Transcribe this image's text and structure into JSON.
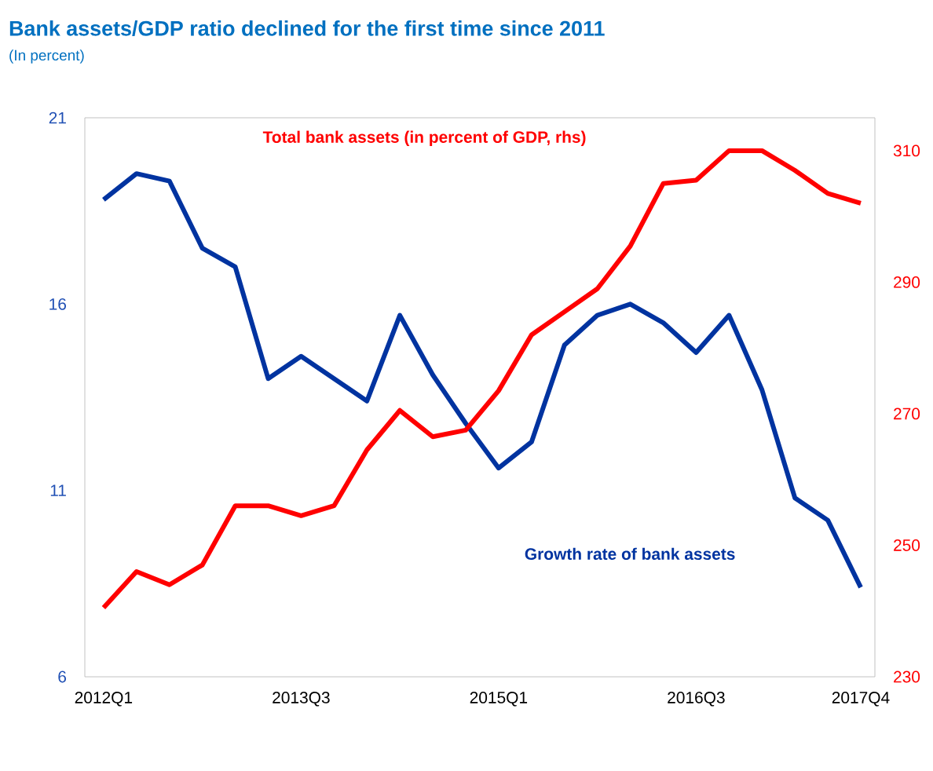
{
  "chart_data": {
    "type": "line",
    "title": "Bank assets/GDP ratio declined for the first time since 2011",
    "subtitle": "(In percent)",
    "categories": [
      "2012Q1",
      null,
      null,
      null,
      null,
      null,
      "2013Q3",
      null,
      null,
      null,
      null,
      null,
      "2015Q1",
      null,
      null,
      null,
      null,
      null,
      "2016Q3",
      null,
      null,
      null,
      null,
      "2017Q4"
    ],
    "series": [
      {
        "name": "Total bank assets (in percent of GDP, rhs)",
        "color": "#ff0000",
        "axis": "y2",
        "values": [
          240.5,
          246,
          244,
          247,
          256,
          256,
          254.5,
          256,
          264.5,
          270.5,
          266.5,
          267.5,
          273.5,
          282,
          285.5,
          289,
          295.5,
          305,
          305.5,
          310,
          310,
          307,
          303.5,
          302
        ]
      },
      {
        "name": "Growth rate of bank assets",
        "color": "#0033a0",
        "values": [
          18.8,
          19.5,
          19.3,
          17.5,
          17.0,
          14.0,
          14.6,
          14.0,
          13.4,
          15.7,
          14.1,
          12.8,
          11.6,
          12.3,
          14.9,
          15.7,
          16.0,
          15.5,
          14.7,
          15.7,
          13.7,
          10.8,
          10.2,
          8.4
        ]
      }
    ],
    "ylim": [
      6,
      21
    ],
    "yticks": [
      6,
      11,
      16,
      21
    ],
    "y2lim": [
      230,
      315
    ],
    "y2ticks": [
      230,
      250,
      270,
      290,
      310
    ],
    "grid": false,
    "marker": "none",
    "line_style": "solid"
  }
}
